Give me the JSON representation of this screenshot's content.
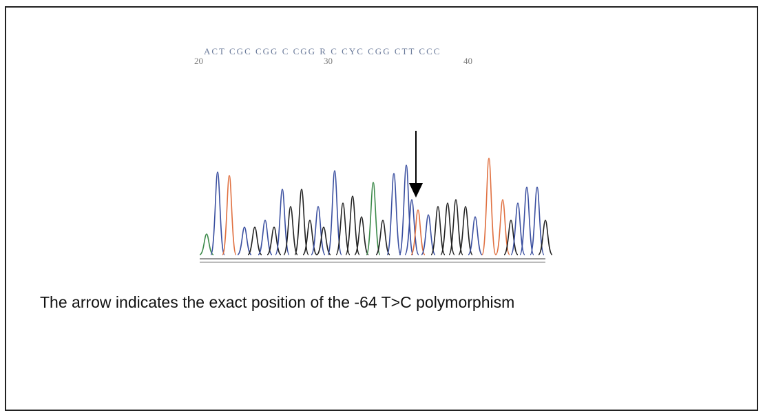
{
  "figure": {
    "sequence": "ACT CGC CGG C CGG R C CYC CGG CTT CCC",
    "positions": [
      20,
      30,
      40
    ],
    "caption": "The arrow indicates the exact position of the -64 T>C polymorphism"
  }
}
